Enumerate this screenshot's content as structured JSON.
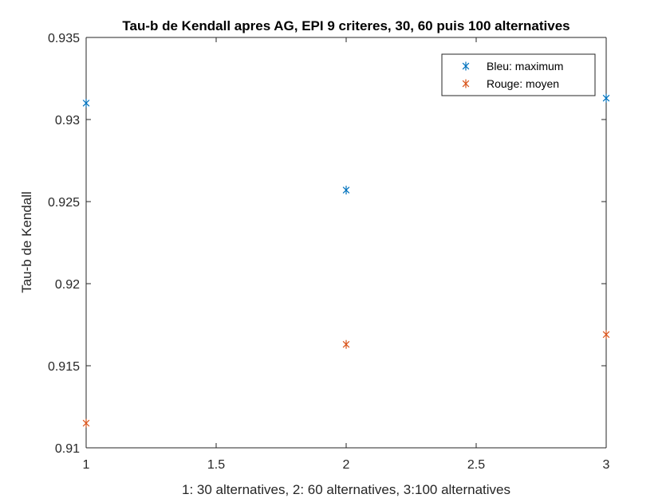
{
  "chart_data": {
    "type": "scatter",
    "title": "Tau-b de Kendall apres AG, EPI 9 criteres, 30, 60 puis 100 alternatives",
    "xlabel": "1: 30 alternatives, 2: 60 alternatives, 3:100 alternatives",
    "ylabel": "Tau-b de Kendall",
    "xlim": [
      1,
      3
    ],
    "ylim": [
      0.91,
      0.935
    ],
    "xticks": [
      1,
      1.5,
      2,
      2.5,
      3
    ],
    "xtick_labels": [
      "1",
      "1.5",
      "2",
      "2.5",
      "3"
    ],
    "yticks": [
      0.91,
      0.915,
      0.92,
      0.925,
      0.93,
      0.935
    ],
    "ytick_labels": [
      "0.91",
      "0.915",
      "0.92",
      "0.925",
      "0.93",
      "0.935"
    ],
    "grid": false,
    "marker": "asterisk",
    "legend_position": "top-right",
    "series": [
      {
        "name": "Bleu: maximum",
        "color": "#0072BD",
        "x": [
          1,
          2,
          3
        ],
        "y": [
          0.931,
          0.9257,
          0.9313
        ]
      },
      {
        "name": "Rouge: moyen",
        "color": "#D95319",
        "x": [
          1,
          2,
          3
        ],
        "y": [
          0.9115,
          0.9163,
          0.9169
        ]
      }
    ]
  }
}
